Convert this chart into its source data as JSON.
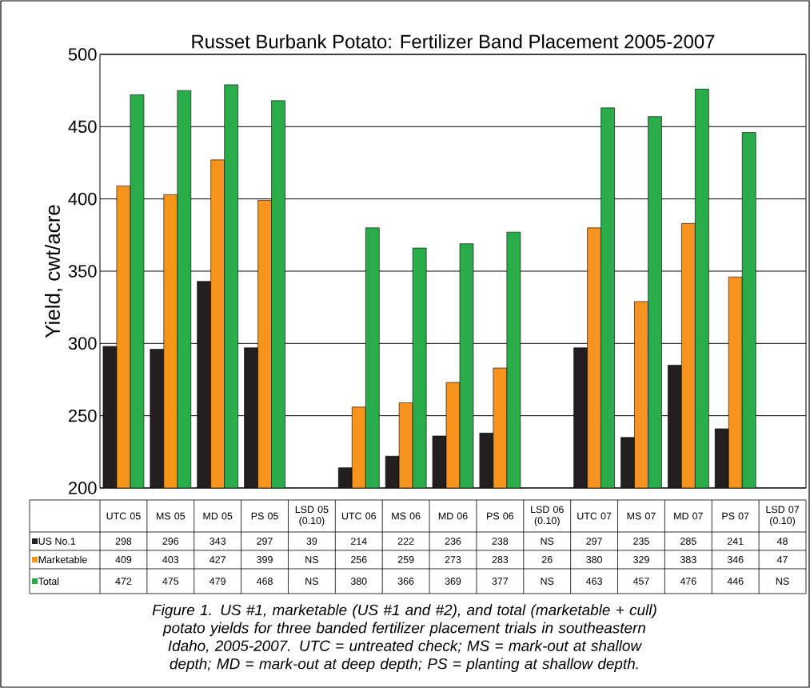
{
  "chart_data": {
    "type": "bar",
    "title": "Russet Burbank Potato: Fertilizer Band Placement 2005-2007",
    "ylabel": "Yield, cwt/acre",
    "categories": [
      "UTC 05",
      "MS 05",
      "MD 05",
      "PS 05",
      "LSD 05 (0.10)",
      "UTC 06",
      "MS 06",
      "MD 06",
      "PS 06",
      "LSD 06 (0.10)",
      "UTC 07",
      "MS 07",
      "MD 07",
      "PS 07",
      "LSD 07 (0.10)"
    ],
    "series": [
      {
        "name": "US No.1",
        "color": "#231f20",
        "values": [
          298,
          296,
          343,
          297,
          null,
          214,
          222,
          236,
          238,
          null,
          297,
          235,
          285,
          241,
          null
        ],
        "value_labels": [
          "298",
          "296",
          "343",
          "297",
          "39",
          "214",
          "222",
          "236",
          "238",
          "NS",
          "297",
          "235",
          "285",
          "241",
          "48"
        ]
      },
      {
        "name": "Marketable",
        "color": "#f7941d",
        "values": [
          409,
          403,
          427,
          399,
          null,
          256,
          259,
          273,
          283,
          null,
          380,
          329,
          383,
          346,
          null
        ],
        "value_labels": [
          "409",
          "403",
          "427",
          "399",
          "NS",
          "256",
          "259",
          "273",
          "283",
          "26",
          "380",
          "329",
          "383",
          "346",
          "47"
        ]
      },
      {
        "name": "Total",
        "color": "#2bac4a",
        "values": [
          472,
          475,
          479,
          468,
          null,
          380,
          366,
          369,
          377,
          null,
          463,
          457,
          476,
          446,
          null
        ],
        "value_labels": [
          "472",
          "475",
          "479",
          "468",
          "NS",
          "380",
          "366",
          "369",
          "377",
          "NS",
          "463",
          "457",
          "476",
          "446",
          "NS"
        ]
      }
    ],
    "ylim": [
      200,
      500
    ],
    "yticks": [
      200,
      250,
      300,
      350,
      400,
      450,
      500
    ],
    "grid": "y",
    "legend": "bottom",
    "annotations": [
      "Figure 1. US #1, marketable (US #1 and #2), and total (marketable + cull) potato yields for three banded fertilizer placement trials in southeastern Idaho, 2005-2007.  UTC = untreated check; MS = mark-out at shallow depth; MD = mark-out at deep depth; PS = planting at shallow depth."
    ]
  }
}
